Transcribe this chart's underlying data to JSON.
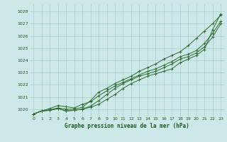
{
  "title": "Graphe pression niveau de la mer (hPa)",
  "bg_color": "#cce8e8",
  "grid_color": "#aacece",
  "line_color": "#2d6e2d",
  "marker_color": "#2d6e2d",
  "xlim": [
    -0.5,
    23.5
  ],
  "ylim": [
    1019.4,
    1028.6
  ],
  "yticks": [
    1020,
    1021,
    1022,
    1023,
    1024,
    1025,
    1026,
    1027,
    1028
  ],
  "xticks": [
    0,
    1,
    2,
    3,
    4,
    5,
    6,
    7,
    8,
    9,
    10,
    11,
    12,
    13,
    14,
    15,
    16,
    17,
    18,
    19,
    20,
    21,
    22,
    23
  ],
  "series": [
    [
      1019.6,
      1019.85,
      1019.9,
      1020.05,
      1019.85,
      1019.9,
      1020.0,
      1020.15,
      1020.4,
      1020.8,
      1021.2,
      1021.7,
      1022.1,
      1022.4,
      1022.7,
      1022.9,
      1023.1,
      1023.3,
      1023.8,
      1024.1,
      1024.4,
      1024.9,
      1026.5,
      1027.8
    ],
    [
      1019.6,
      1019.85,
      1019.9,
      1020.05,
      1019.85,
      1019.9,
      1020.0,
      1020.25,
      1020.7,
      1021.2,
      1021.7,
      1022.1,
      1022.4,
      1022.7,
      1022.9,
      1023.1,
      1023.4,
      1023.7,
      1024.1,
      1024.3,
      1024.6,
      1025.1,
      1025.9,
      1027.0
    ],
    [
      1019.6,
      1019.85,
      1020.05,
      1020.3,
      1020.2,
      1020.1,
      1020.4,
      1020.6,
      1021.1,
      1021.5,
      1021.9,
      1022.2,
      1022.5,
      1022.8,
      1023.1,
      1023.3,
      1023.6,
      1023.9,
      1024.3,
      1024.5,
      1024.8,
      1025.4,
      1026.2,
      1027.2
    ],
    [
      1019.6,
      1019.85,
      1019.95,
      1020.1,
      1020.0,
      1020.0,
      1020.15,
      1020.7,
      1021.4,
      1021.7,
      1022.1,
      1022.4,
      1022.7,
      1023.1,
      1023.4,
      1023.7,
      1024.1,
      1024.4,
      1024.7,
      1025.2,
      1025.8,
      1026.4,
      1027.0,
      1027.7
    ]
  ]
}
